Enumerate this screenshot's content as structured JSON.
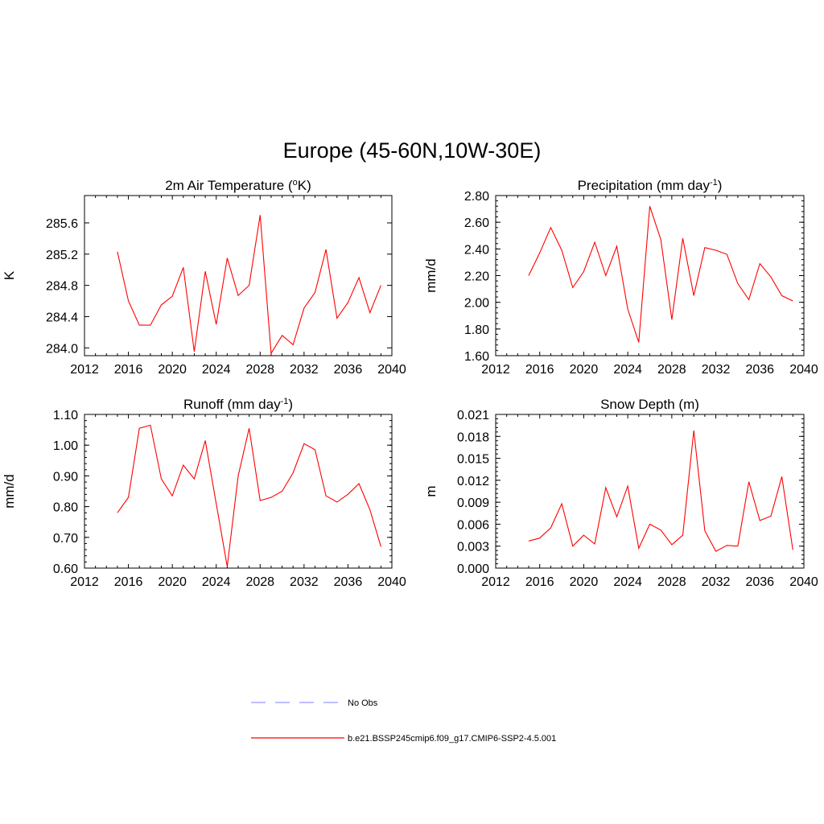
{
  "figure": {
    "title": "Europe (45-60N,10W-30E)"
  },
  "colors": {
    "series": "#ff0000",
    "obs": "#9999ff",
    "axis": "#000000"
  },
  "chart_data": [
    {
      "type": "line",
      "title": "2m Air Temperature (",
      "title_sup_pre": "o",
      "title_post": "K)",
      "title_sup_post": "",
      "title_tail": "",
      "ylabel": "K",
      "xlim": [
        2012,
        2040
      ],
      "ylim": [
        283.9,
        285.95
      ],
      "x_ticks": [
        "2012",
        "2016",
        "2020",
        "2024",
        "2028",
        "2032",
        "2036",
        "2040"
      ],
      "y_ticks": [
        284.0,
        284.4,
        284.8,
        285.2,
        285.6
      ],
      "y_tick_labels": [
        "284.0",
        "284.4",
        "284.8",
        "285.2",
        "285.6"
      ],
      "series": [
        {
          "x": [
            2015,
            2016,
            2017,
            2018,
            2019,
            2020,
            2021,
            2022,
            2023,
            2024,
            2025,
            2026,
            2027,
            2028,
            2029,
            2030,
            2031,
            2032,
            2033,
            2034,
            2035,
            2036,
            2037,
            2038,
            2039
          ],
          "values": [
            285.23,
            284.6,
            284.29,
            284.29,
            284.55,
            284.66,
            285.03,
            283.95,
            284.98,
            284.3,
            285.15,
            284.67,
            284.8,
            285.7,
            283.93,
            284.16,
            284.04,
            284.51,
            284.71,
            285.26,
            284.38,
            284.58,
            284.9,
            284.45,
            284.8
          ]
        }
      ]
    },
    {
      "type": "line",
      "title": "Precipitation (mm day",
      "title_sup_pre": "",
      "title_post": "",
      "title_sup_post": "-1",
      "title_tail": ")",
      "ylabel": "mm/d",
      "xlim": [
        2012,
        2040
      ],
      "ylim": [
        1.6,
        2.8
      ],
      "x_ticks": [
        "2012",
        "2016",
        "2020",
        "2024",
        "2028",
        "2032",
        "2036",
        "2040"
      ],
      "y_ticks": [
        1.6,
        1.8,
        2.0,
        2.2,
        2.4,
        2.6,
        2.8
      ],
      "y_tick_labels": [
        "1.60",
        "1.80",
        "2.00",
        "2.20",
        "2.40",
        "2.60",
        "2.80"
      ],
      "series": [
        {
          "x": [
            2015,
            2016,
            2017,
            2018,
            2019,
            2020,
            2021,
            2022,
            2023,
            2024,
            2025,
            2026,
            2027,
            2028,
            2029,
            2030,
            2031,
            2032,
            2033,
            2034,
            2035,
            2036,
            2037,
            2038,
            2039
          ],
          "values": [
            2.2,
            2.37,
            2.56,
            2.39,
            2.11,
            2.23,
            2.45,
            2.2,
            2.42,
            1.95,
            1.7,
            2.72,
            2.47,
            1.87,
            2.48,
            2.05,
            2.41,
            2.39,
            2.36,
            2.14,
            2.02,
            2.29,
            2.19,
            2.05,
            2.01
          ]
        }
      ]
    },
    {
      "type": "line",
      "title": "Runoff (mm day",
      "title_sup_pre": "",
      "title_post": "",
      "title_sup_post": "-1",
      "title_tail": ")",
      "ylabel": "mm/d",
      "xlim": [
        2012,
        2040
      ],
      "ylim": [
        0.6,
        1.1
      ],
      "x_ticks": [
        "2012",
        "2016",
        "2020",
        "2024",
        "2028",
        "2032",
        "2036",
        "2040"
      ],
      "y_ticks": [
        0.6,
        0.7,
        0.8,
        0.9,
        1.0,
        1.1
      ],
      "y_tick_labels": [
        "0.60",
        "0.70",
        "0.80",
        "0.90",
        "1.00",
        "1.10"
      ],
      "series": [
        {
          "x": [
            2015,
            2016,
            2017,
            2018,
            2019,
            2020,
            2021,
            2022,
            2023,
            2024,
            2025,
            2026,
            2027,
            2028,
            2029,
            2030,
            2031,
            2032,
            2033,
            2034,
            2035,
            2036,
            2037,
            2038,
            2039
          ],
          "values": [
            0.78,
            0.83,
            1.055,
            1.065,
            0.89,
            0.835,
            0.935,
            0.89,
            1.015,
            0.81,
            0.605,
            0.9,
            1.055,
            0.82,
            0.83,
            0.85,
            0.91,
            1.005,
            0.985,
            0.835,
            0.815,
            0.84,
            0.875,
            0.79,
            0.67
          ]
        }
      ]
    },
    {
      "type": "line",
      "title": "Snow Depth (m)",
      "title_sup_pre": "",
      "title_post": "",
      "title_sup_post": "",
      "title_tail": "",
      "ylabel": "m",
      "xlim": [
        2012,
        2040
      ],
      "ylim": [
        0.0,
        0.021
      ],
      "x_ticks": [
        "2012",
        "2016",
        "2020",
        "2024",
        "2028",
        "2032",
        "2036",
        "2040"
      ],
      "y_ticks": [
        0.0,
        0.003,
        0.006,
        0.009,
        0.012,
        0.015,
        0.018,
        0.021
      ],
      "y_tick_labels": [
        "0.000",
        "0.003",
        "0.006",
        "0.009",
        "0.012",
        "0.015",
        "0.018",
        "0.021"
      ],
      "series": [
        {
          "x": [
            2015,
            2016,
            2017,
            2018,
            2019,
            2020,
            2021,
            2022,
            2023,
            2024,
            2025,
            2026,
            2027,
            2028,
            2029,
            2030,
            2031,
            2032,
            2033,
            2034,
            2035,
            2036,
            2037,
            2038,
            2039
          ],
          "values": [
            0.0037,
            0.0041,
            0.0055,
            0.0088,
            0.003,
            0.0045,
            0.0033,
            0.011,
            0.007,
            0.0112,
            0.0027,
            0.006,
            0.0052,
            0.0032,
            0.0045,
            0.0188,
            0.0051,
            0.0023,
            0.0031,
            0.003,
            0.0118,
            0.0065,
            0.0071,
            0.0125,
            0.0025
          ]
        }
      ]
    }
  ],
  "legend": {
    "items": [
      {
        "label": "No Obs",
        "style": "dashed"
      },
      {
        "label": "b.e21.BSSP245cmip6.f09_g17.CMIP6-SSP2-4.5.001",
        "style": "solid"
      }
    ]
  }
}
